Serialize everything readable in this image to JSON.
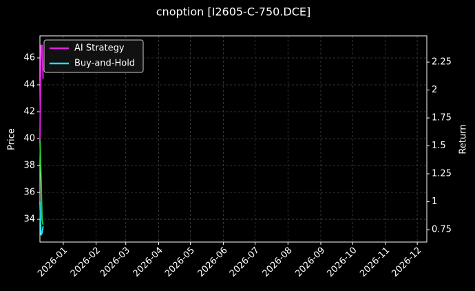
{
  "chart_data": {
    "type": "line",
    "title": "cnoption [I2605-C-750.DCE]",
    "ylabel": "Price",
    "y2label": "Return",
    "x": [
      "2025-12-10",
      "2025-12-11",
      "2025-12-12",
      "2025-12-13"
    ],
    "price": {
      "color": "#32cd32",
      "values": [
        40.0,
        37.2,
        34.0,
        33.6
      ]
    },
    "series": [
      {
        "name": "AI Strategy",
        "color": "#e020e0",
        "axis": "y2",
        "values": [
          1.55,
          2.4,
          2.4,
          2.1
        ]
      },
      {
        "name": "Buy-and-Hold",
        "color": "#20e0f0",
        "axis": "y2",
        "values": [
          1.0,
          0.7,
          0.72,
          0.78
        ]
      }
    ],
    "xlim": [
      "2025-12-10",
      "2026-12-10"
    ],
    "xticks": [
      "2026-01",
      "2026-02",
      "2026-03",
      "2026-04",
      "2026-05",
      "2026-06",
      "2026-07",
      "2026-08",
      "2026-09",
      "2026-10",
      "2026-11",
      "2026-12"
    ],
    "ylim": [
      32.31,
      47.64
    ],
    "yticks": [
      34,
      36,
      38,
      40,
      42,
      44,
      46
    ],
    "y2lim": [
      0.639,
      2.485
    ],
    "y2ticks": [
      0.75,
      1.0,
      1.25,
      1.5,
      1.75,
      2.0,
      2.25
    ],
    "grid": true,
    "legend": "upper-left"
  }
}
